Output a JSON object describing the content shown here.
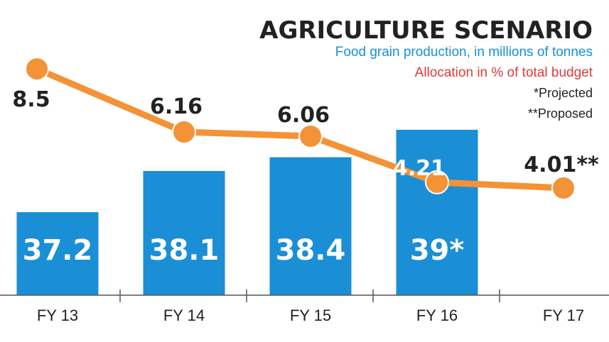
{
  "chart_data": {
    "type": "bar",
    "title": "AGRICULTURE SCENARIO",
    "categories": [
      "FY 13",
      "FY 14",
      "FY 15",
      "FY 16",
      "FY 17"
    ],
    "series": [
      {
        "name": "Food grain production, in millions of tonnes",
        "type": "bar",
        "values": [
          37.2,
          38.1,
          38.4,
          39,
          null
        ],
        "labels": [
          "37.2",
          "38.1",
          "38.4",
          "39*",
          ""
        ],
        "color": "#1a8fd6"
      },
      {
        "name": "Allocation in % of total budget",
        "type": "line",
        "values": [
          8.5,
          6.16,
          6.06,
          4.21,
          4.01
        ],
        "labels": [
          "8.5",
          "6.16",
          "6.06",
          "4.21",
          "4.01**"
        ],
        "color": "#f39237"
      }
    ],
    "notes": [
      "*Projected",
      "**Proposed"
    ],
    "colors": {
      "title": "#222222",
      "bar_series_text": "#1a8fd6",
      "line_series_text": "#e03a3a",
      "notes": "#222222"
    }
  }
}
